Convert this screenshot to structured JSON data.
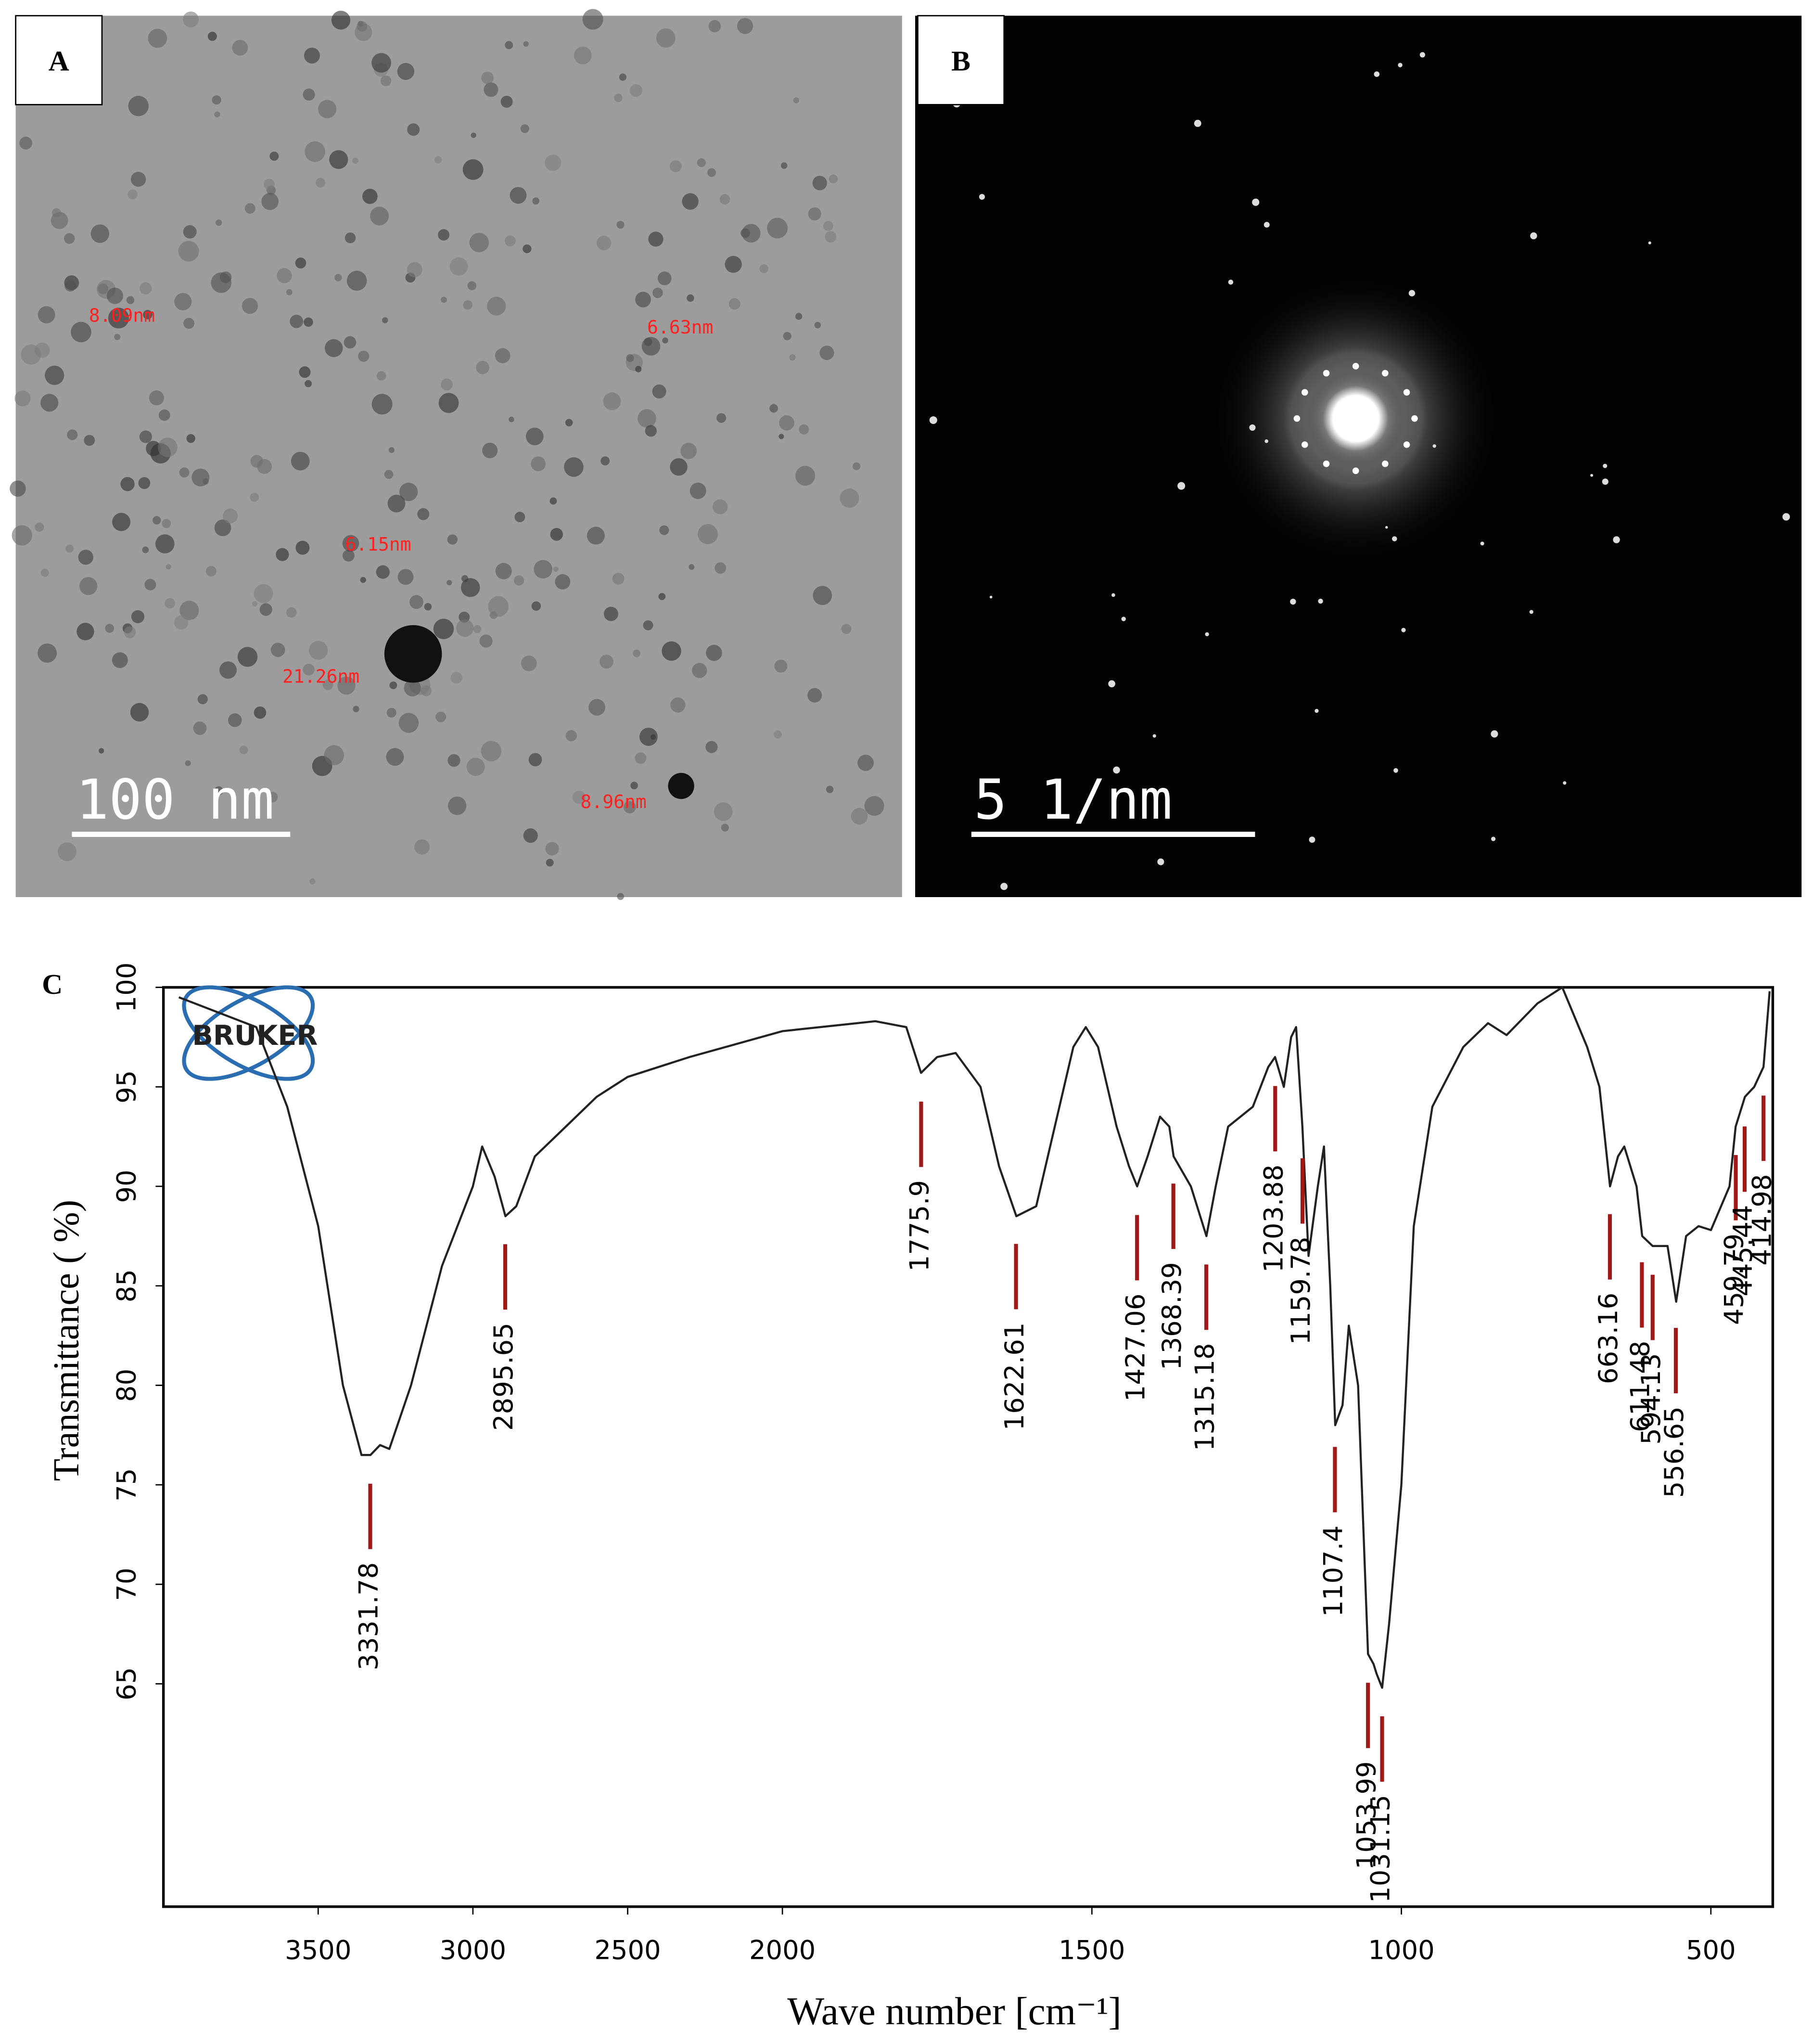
{
  "panels": [
    {
      "label": "A",
      "scale_bar": "100 nm",
      "annotations": [
        "8.09nm",
        "6.63nm",
        "6.15nm",
        "21.26nm",
        "8.96nm"
      ]
    },
    {
      "label": "B",
      "scale_bar": "5 1/nm"
    }
  ],
  "chart_data": {
    "type": "line",
    "label": "C",
    "logo": "BRUKER",
    "x_label": "Wave number [cm⁻¹]",
    "y_label": "Transmittance ( %)",
    "color": "#222222",
    "peak_color": "#a01818",
    "xlim": [
      4000,
      400
    ],
    "x_scale_change": {
      "at": 2000,
      "factor": 2
    },
    "xticks": [
      3500,
      3000,
      2500,
      2000,
      1500,
      1000,
      500
    ],
    "ylim": [
      53.8,
      100
    ],
    "yticks": [
      65,
      70,
      75,
      80,
      85,
      90,
      95,
      100
    ],
    "x": [
      3950,
      3700,
      3600,
      3500,
      3420,
      3360,
      3331,
      3300,
      3270,
      3200,
      3100,
      3000,
      2970,
      2930,
      2895,
      2860,
      2800,
      2700,
      2600,
      2500,
      2300,
      2000,
      1850,
      1800,
      1776,
      1750,
      1720,
      1680,
      1650,
      1622,
      1590,
      1560,
      1530,
      1510,
      1490,
      1460,
      1440,
      1427,
      1410,
      1390,
      1375,
      1368,
      1340,
      1315,
      1300,
      1280,
      1240,
      1215,
      1204,
      1190,
      1178,
      1170,
      1160,
      1150,
      1135,
      1125,
      1115,
      1107,
      1095,
      1085,
      1070,
      1054,
      1045,
      1040,
      1031,
      1020,
      1000,
      980,
      950,
      900,
      860,
      830,
      780,
      740,
      700,
      680,
      663,
      650,
      640,
      620,
      611,
      594,
      570,
      556,
      540,
      520,
      500,
      470,
      460,
      445,
      430,
      415,
      405
    ],
    "values": [
      99.5,
      98,
      94,
      88,
      80,
      76.5,
      76.5,
      77,
      76.8,
      80,
      86,
      90,
      92,
      90.5,
      88.5,
      89,
      91.5,
      93,
      94.5,
      95.5,
      96.5,
      97.8,
      98.3,
      98,
      95.7,
      96.5,
      96.7,
      95,
      91,
      88.5,
      89,
      93,
      97,
      98,
      97,
      93,
      91,
      90,
      91.5,
      93.5,
      93,
      91.5,
      90,
      87.5,
      90,
      93,
      94,
      96,
      96.5,
      95,
      97.5,
      98,
      93,
      86.5,
      90,
      92,
      85,
      78,
      79,
      83,
      80,
      66.5,
      66,
      65.5,
      64.8,
      68,
      75,
      88,
      94,
      97,
      98.2,
      97.6,
      99.2,
      100,
      97,
      95,
      90,
      91.5,
      92,
      90,
      87.5,
      87,
      87,
      84.2,
      87.5,
      88,
      87.8,
      90,
      93,
      94.5,
      95,
      96,
      99.8
    ],
    "peaks": [
      3331.78,
      2895.65,
      1775.9,
      1622.61,
      1427.06,
      1368.39,
      1315.18,
      1203.88,
      1159.78,
      1107.4,
      1053.99,
      1031.15,
      663.16,
      611.48,
      594.13,
      556.65,
      459.79,
      445.44,
      414.98
    ]
  }
}
